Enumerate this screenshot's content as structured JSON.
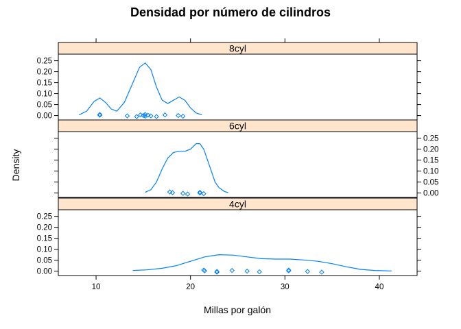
{
  "chart_data": {
    "type": "density",
    "title": "Densidad por número de cilindros",
    "xlabel": "Millas por galón",
    "ylabel": "Density",
    "xlim": [
      6,
      44
    ],
    "ylim": [
      -0.02,
      0.28
    ],
    "x_ticks": [
      10,
      20,
      30,
      40
    ],
    "y_ticks": [
      0.0,
      0.05,
      0.1,
      0.15,
      0.2,
      0.25
    ],
    "y_tick_labels": [
      "0.00",
      "0.05",
      "0.10",
      "0.15",
      "0.20",
      "0.25"
    ],
    "line_color": "#0080ff",
    "strip_color": "#ffe5cc",
    "panels": [
      {
        "label": "8cyl",
        "y_axis_side": "left",
        "x": [
          8.2,
          9.0,
          9.8,
          10.4,
          11.0,
          11.6,
          12.2,
          13.0,
          13.8,
          14.6,
          15.2,
          15.8,
          16.4,
          17.0,
          17.6,
          18.2,
          18.8,
          19.4,
          20.0,
          20.6,
          21.2
        ],
        "density": [
          0.003,
          0.02,
          0.065,
          0.08,
          0.06,
          0.03,
          0.02,
          0.06,
          0.14,
          0.22,
          0.24,
          0.21,
          0.13,
          0.07,
          0.055,
          0.07,
          0.085,
          0.07,
          0.035,
          0.012,
          0.003
        ],
        "observations": [
          10.4,
          10.4,
          13.3,
          14.3,
          14.7,
          15.0,
          15.2,
          15.2,
          15.5,
          15.8,
          16.4,
          17.3,
          18.7,
          19.2
        ]
      },
      {
        "label": "6cyl",
        "y_axis_side": "right",
        "x": [
          15.2,
          15.8,
          16.4,
          17.0,
          17.6,
          18.2,
          18.8,
          19.4,
          20.0,
          20.6,
          21.0,
          21.4,
          21.8,
          22.2,
          22.6,
          23.0,
          23.6,
          24.0
        ],
        "density": [
          0.003,
          0.015,
          0.05,
          0.11,
          0.16,
          0.185,
          0.19,
          0.19,
          0.2,
          0.225,
          0.225,
          0.2,
          0.15,
          0.1,
          0.05,
          0.025,
          0.007,
          0.002
        ],
        "observations": [
          17.8,
          18.1,
          19.2,
          19.7,
          21.0,
          21.0,
          21.4
        ]
      },
      {
        "label": "4cyl",
        "y_axis_side": "left",
        "x": [
          13.9,
          15.4,
          17.0,
          18.5,
          20.0,
          21.5,
          23.0,
          24.5,
          26.0,
          27.5,
          29.0,
          30.5,
          32.0,
          33.5,
          35.0,
          36.5,
          38.0,
          39.5,
          41.3
        ],
        "density": [
          0.003,
          0.006,
          0.013,
          0.025,
          0.045,
          0.065,
          0.075,
          0.073,
          0.065,
          0.057,
          0.055,
          0.055,
          0.051,
          0.045,
          0.034,
          0.02,
          0.008,
          0.003,
          0.001
        ],
        "observations": [
          21.4,
          21.5,
          22.8,
          22.8,
          24.4,
          26.0,
          27.3,
          30.4,
          30.4,
          32.4,
          33.9
        ]
      }
    ]
  }
}
